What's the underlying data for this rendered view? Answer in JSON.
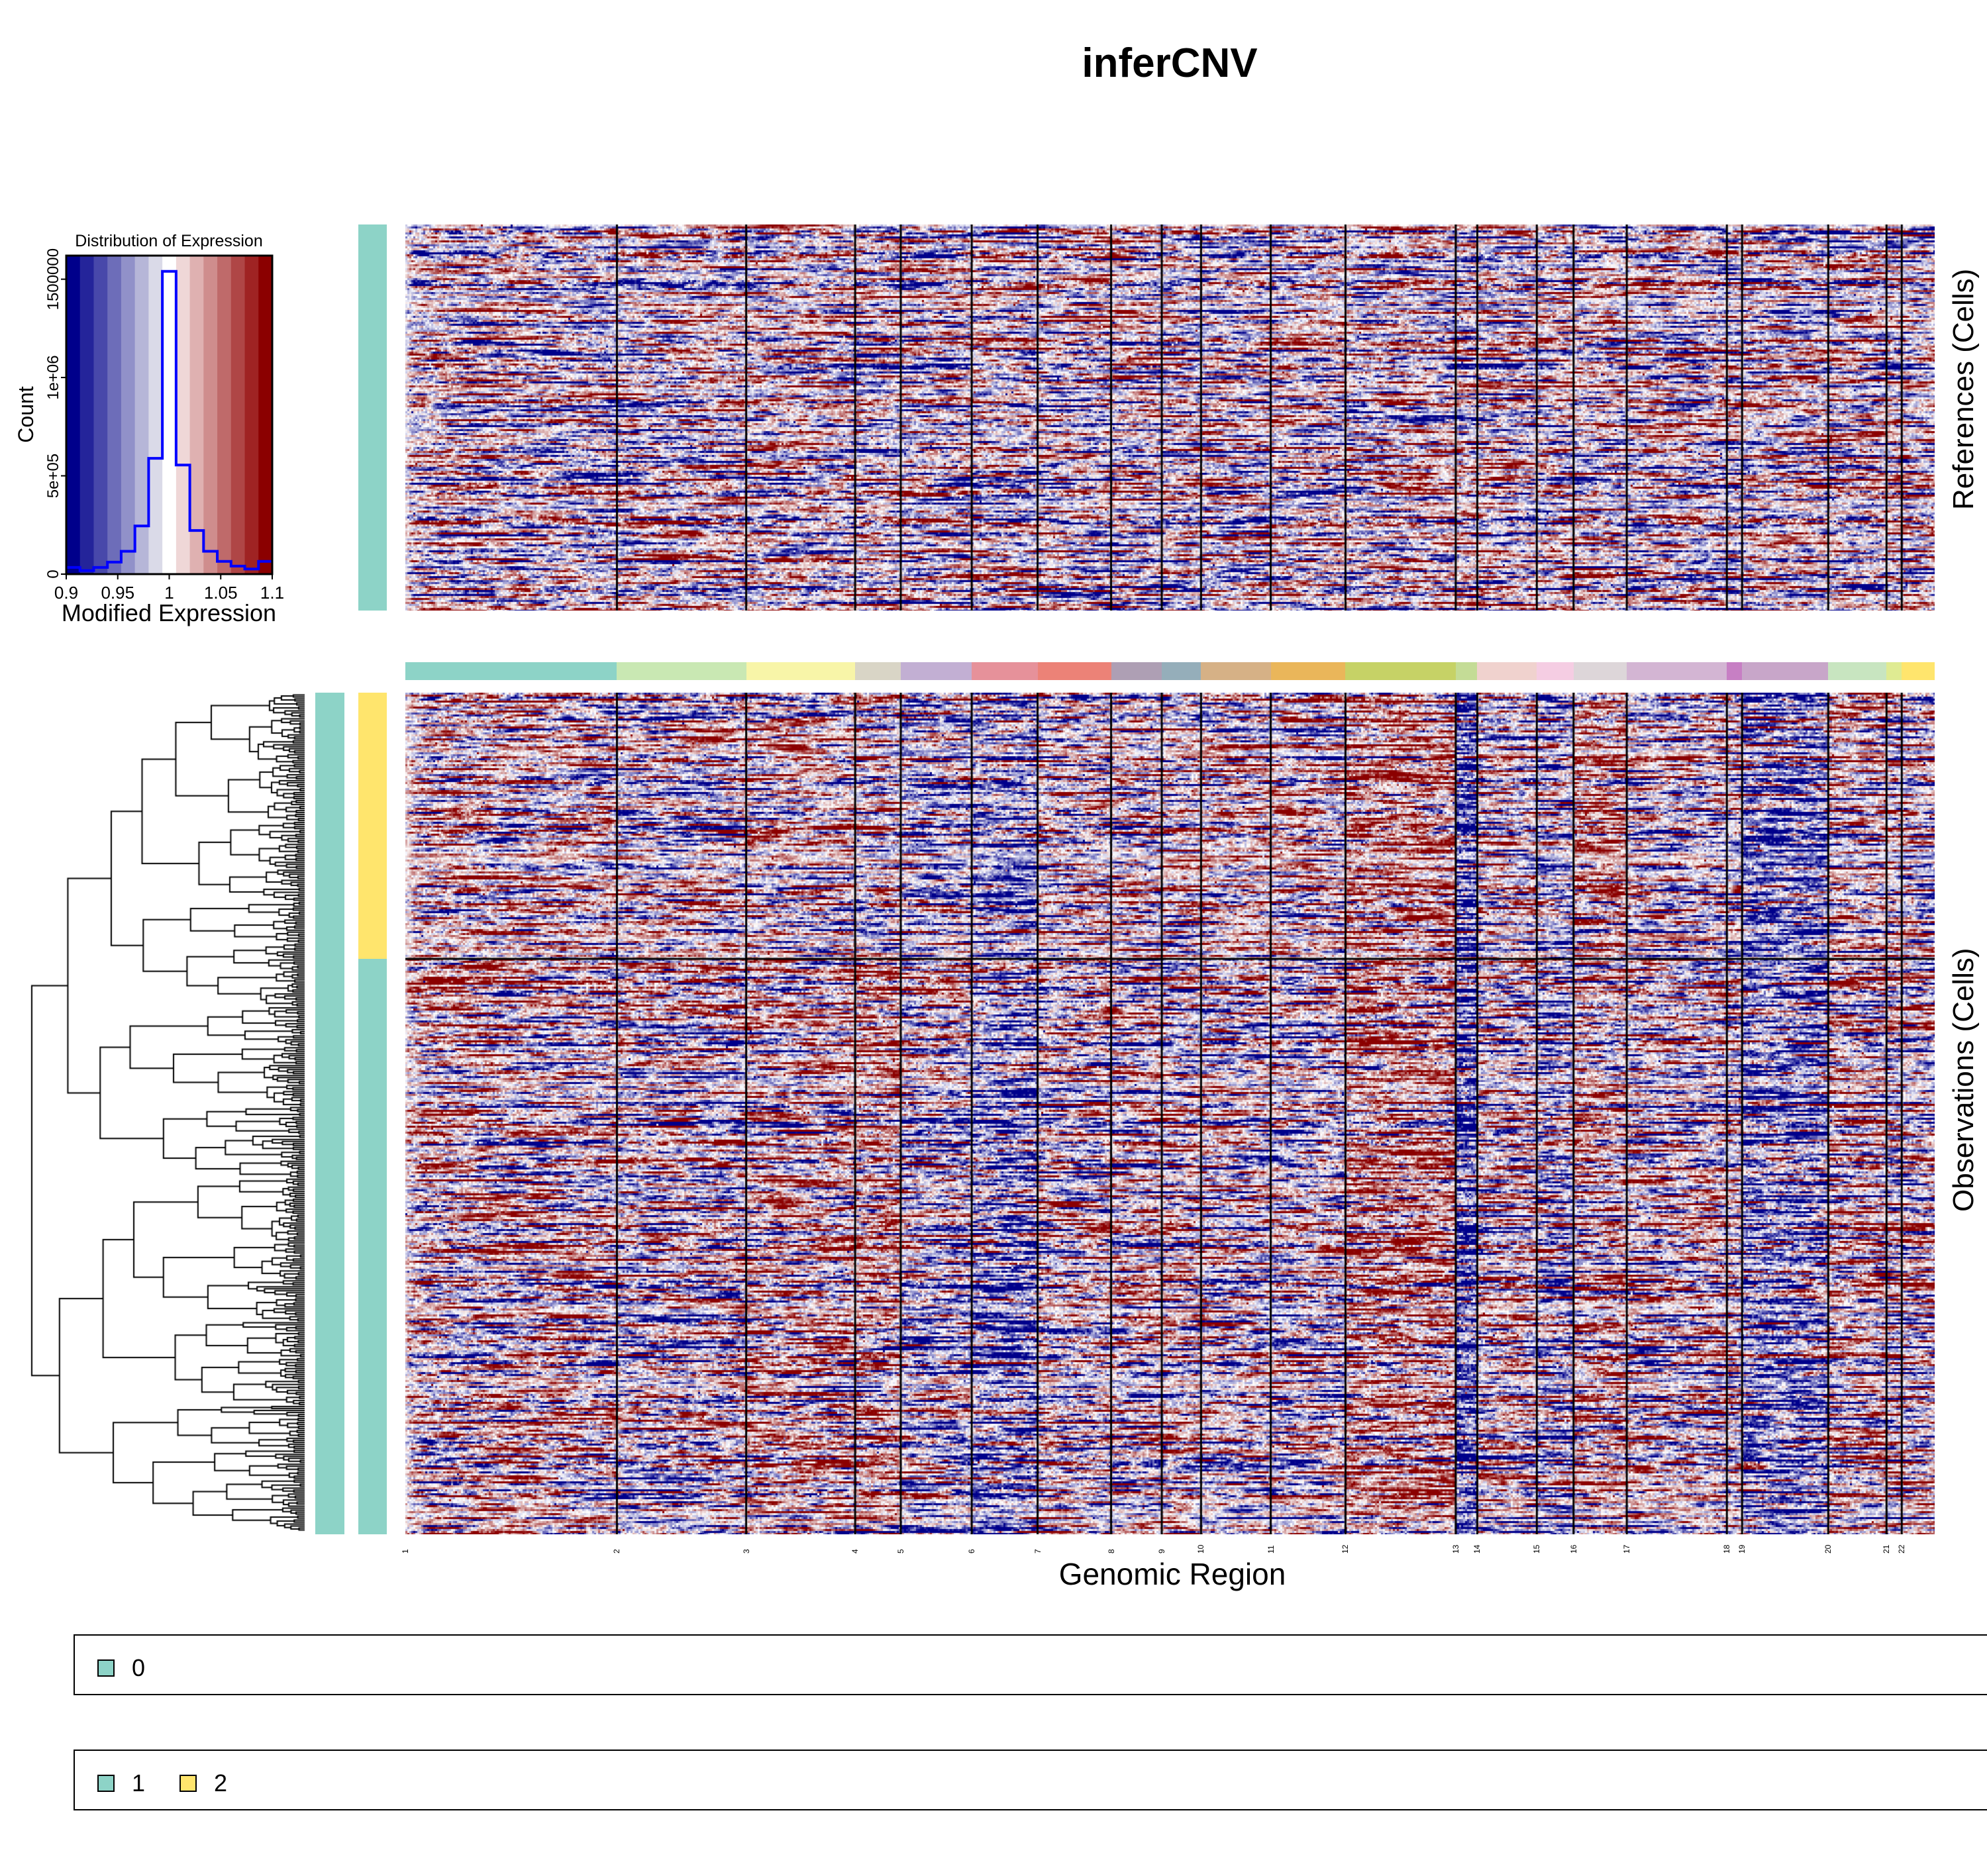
{
  "title": "inferCNV",
  "histogram": {
    "title": "Distribution of Expression",
    "xlabel": "Modified Expression",
    "ylabel": "Count",
    "xticks": [
      "0.9",
      "0.95",
      "1",
      "1.05",
      "1.1"
    ],
    "yticks": [
      "0",
      "5e+05",
      "1e+06",
      "1500000"
    ],
    "xlim": [
      0.9,
      1.1
    ],
    "ylim": [
      0,
      1620000
    ],
    "bin_counts": [
      34000,
      18000,
      34000,
      61000,
      116000,
      245000,
      589000,
      1540000,
      555000,
      222000,
      116000,
      65000,
      41000,
      26000,
      65000
    ],
    "line_color": "#0000FF",
    "palette": [
      "#00008B",
      "#24249A",
      "#4848AA",
      "#6D6DB9",
      "#9191C9",
      "#B6B6D8",
      "#DADAE8",
      "#FFFFFF",
      "#EFD7D7",
      "#DFB1B1",
      "#CF8D8D",
      "#BF6A6A",
      "#AF4646",
      "#9F2323",
      "#8B0000"
    ]
  },
  "chart_data": {
    "type": "heatmap",
    "title": "inferCNV",
    "xlabel": "Genomic Region",
    "panels": [
      {
        "label": "References (Cells)",
        "groups": [
          {
            "name": "0",
            "color": "#8DD3C7"
          }
        ]
      },
      {
        "label": "Observations (Cells)",
        "groups": [
          {
            "name": "2",
            "color": "#FFE56D"
          },
          {
            "name": "1",
            "color": "#8DD3C7"
          }
        ]
      }
    ],
    "chromosomes": [
      {
        "label": "1",
        "relative_genes": 167,
        "color": "#8DD3C7"
      },
      {
        "label": "2",
        "relative_genes": 102,
        "color": "#C9E8B3"
      },
      {
        "label": "3",
        "relative_genes": 86,
        "color": "#F8F5A8"
      },
      {
        "label": "4",
        "relative_genes": 36,
        "color": "#D9D5C6"
      },
      {
        "label": "5",
        "relative_genes": 56,
        "color": "#C2AFD3"
      },
      {
        "label": "6",
        "relative_genes": 52,
        "color": "#E6919A"
      },
      {
        "label": "7",
        "relative_genes": 58,
        "color": "#EC8277"
      },
      {
        "label": "8",
        "relative_genes": 40,
        "color": "#AE9FB4"
      },
      {
        "label": "9",
        "relative_genes": 31,
        "color": "#95AEBA"
      },
      {
        "label": "10",
        "relative_genes": 55,
        "color": "#D6B186"
      },
      {
        "label": "11",
        "relative_genes": 59,
        "color": "#EAB65A"
      },
      {
        "label": "12",
        "relative_genes": 87,
        "color": "#C6D266"
      },
      {
        "label": "13",
        "relative_genes": 17,
        "color": "#C4DC96"
      },
      {
        "label": "14",
        "relative_genes": 47,
        "color": "#F0D2CE"
      },
      {
        "label": "15",
        "relative_genes": 29,
        "color": "#F5CDE3"
      },
      {
        "label": "16",
        "relative_genes": 42,
        "color": "#DDD6D9"
      },
      {
        "label": "17",
        "relative_genes": 79,
        "color": "#D3B5D3"
      },
      {
        "label": "18",
        "relative_genes": 12,
        "color": "#C77FC4"
      },
      {
        "label": "19",
        "relative_genes": 68,
        "color": "#C8A6C9"
      },
      {
        "label": "20",
        "relative_genes": 46,
        "color": "#C8E5C0"
      },
      {
        "label": "21",
        "relative_genes": 12,
        "color": "#DFEB92"
      },
      {
        "label": "22",
        "relative_genes": 26,
        "color": "#FFE56D"
      }
    ],
    "color_scale": {
      "low": "#00008B",
      "mid": "#FFFFFF",
      "high": "#8B0000",
      "range": [
        0.9,
        1.1
      ]
    }
  },
  "legends": [
    {
      "items": [
        {
          "label": "0",
          "color": "#8DD3C7"
        }
      ]
    },
    {
      "items": [
        {
          "label": "1",
          "color": "#8DD3C7"
        },
        {
          "label": "2",
          "color": "#FFE56D"
        }
      ]
    }
  ]
}
